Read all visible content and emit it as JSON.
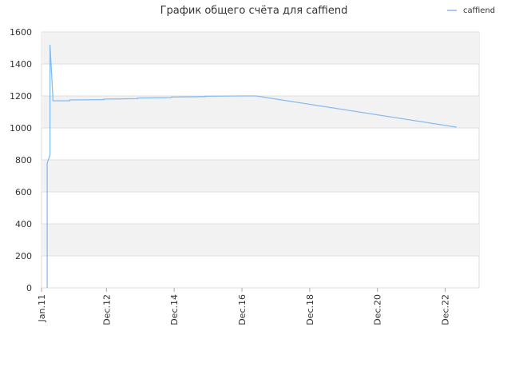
{
  "chart_data": {
    "type": "line",
    "title": "График общего счёта для caffiend",
    "x": [
      "2011-03",
      "2011-03",
      "2011-03",
      "2011-04",
      "2011-04",
      "2011-05",
      "2011-05",
      "2011-11",
      "2011-11",
      "2012-11",
      "2012-11",
      "2013-11",
      "2013-11",
      "2014-11",
      "2014-11",
      "2015-11",
      "2015-11",
      "2016-11",
      "2017-05",
      "2023-04"
    ],
    "series": [
      {
        "name": "caffiend",
        "color": "#88bbee",
        "values": [
          0,
          340,
          780,
          830,
          1520,
          1200,
          1170,
          1170,
          1175,
          1177,
          1180,
          1183,
          1187,
          1190,
          1193,
          1196,
          1198,
          1200,
          1200,
          1005
        ]
      }
    ],
    "xlim": [
      "2011-01",
      "2023-12"
    ],
    "xticks": [
      {
        "value": "2011-01",
        "label": "Jan.11"
      },
      {
        "value": "2012-12",
        "label": "Dec.12"
      },
      {
        "value": "2014-12",
        "label": "Dec.14"
      },
      {
        "value": "2016-12",
        "label": "Dec.16"
      },
      {
        "value": "2018-12",
        "label": "Dec.18"
      },
      {
        "value": "2020-12",
        "label": "Dec.20"
      },
      {
        "value": "2022-12",
        "label": "Dec.22"
      }
    ],
    "ylim": [
      0,
      1600
    ],
    "yticks": [
      0,
      200,
      400,
      600,
      800,
      1000,
      1200,
      1400,
      1600
    ],
    "grid": true,
    "legend": "top-right"
  }
}
